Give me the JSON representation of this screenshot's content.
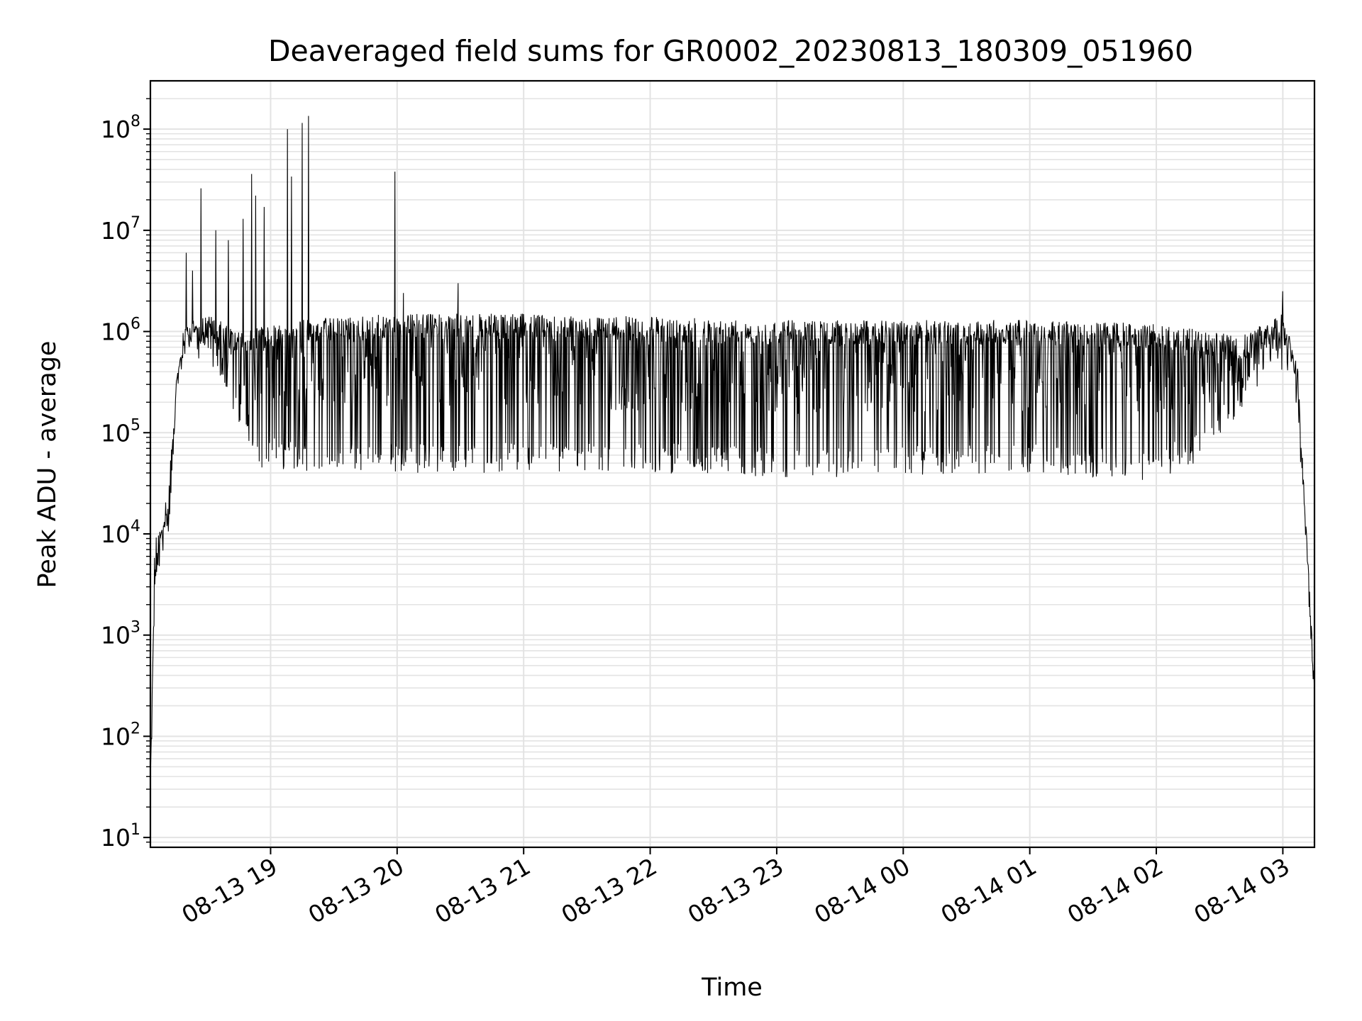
{
  "chart_data": {
    "type": "line",
    "title": "Deaveraged field sums for GR0002_20230813_180309_051960",
    "xlabel": "Time",
    "ylabel": "Peak ADU - average",
    "yscale": "log",
    "ylim": [
      8,
      300000000
    ],
    "xlim": [
      "2023-08-13 18:03",
      "2023-08-14 03:15"
    ],
    "grid": true,
    "line_color": "#000000",
    "grid_color": "#e3e3e3",
    "x_ticks": [
      {
        "t": "2023-08-13 19:00",
        "label": "08-13 19"
      },
      {
        "t": "2023-08-13 20:00",
        "label": "08-13 20"
      },
      {
        "t": "2023-08-13 21:00",
        "label": "08-13 21"
      },
      {
        "t": "2023-08-13 22:00",
        "label": "08-13 22"
      },
      {
        "t": "2023-08-13 23:00",
        "label": "08-13 23"
      },
      {
        "t": "2023-08-14 00:00",
        "label": "08-14 00"
      },
      {
        "t": "2023-08-14 01:00",
        "label": "08-14 01"
      },
      {
        "t": "2023-08-14 02:00",
        "label": "08-14 02"
      },
      {
        "t": "2023-08-14 03:00",
        "label": "08-14 03"
      }
    ],
    "y_ticks": [
      {
        "value": 10,
        "base": "10",
        "exp": "1"
      },
      {
        "value": 100,
        "base": "10",
        "exp": "2"
      },
      {
        "value": 1000,
        "base": "10",
        "exp": "3"
      },
      {
        "value": 10000,
        "base": "10",
        "exp": "4"
      },
      {
        "value": 100000,
        "base": "10",
        "exp": "5"
      },
      {
        "value": 1000000,
        "base": "10",
        "exp": "6"
      },
      {
        "value": 10000000,
        "base": "10",
        "exp": "7"
      },
      {
        "value": 100000000,
        "base": "10",
        "exp": "8"
      }
    ],
    "series": [
      {
        "envelope_upper": [
          [
            "2023-08-13 18:03",
            35
          ],
          [
            "2023-08-13 18:05",
            4000
          ],
          [
            "2023-08-13 18:08",
            10000
          ],
          [
            "2023-08-13 18:12",
            20000
          ],
          [
            "2023-08-13 18:15",
            300000
          ],
          [
            "2023-08-13 18:20",
            1200000
          ],
          [
            "2023-08-13 18:30",
            1500000
          ],
          [
            "2023-08-13 18:45",
            1000000
          ],
          [
            "2023-08-13 19:10",
            1300000
          ],
          [
            "2023-08-13 20:00",
            1500000
          ],
          [
            "2023-08-13 21:00",
            1500000
          ],
          [
            "2023-08-13 22:00",
            1400000
          ],
          [
            "2023-08-13 23:00",
            1300000
          ],
          [
            "2023-08-14 00:00",
            1300000
          ],
          [
            "2023-08-14 01:00",
            1300000
          ],
          [
            "2023-08-14 02:00",
            1200000
          ],
          [
            "2023-08-14 02:40",
            900000
          ],
          [
            "2023-08-14 03:00",
            1500000
          ],
          [
            "2023-08-14 03:07",
            500000
          ],
          [
            "2023-08-14 03:12",
            5000
          ],
          [
            "2023-08-14 03:15",
            300
          ]
        ],
        "envelope_lower": [
          [
            "2023-08-13 18:03",
            35
          ],
          [
            "2023-08-13 18:05",
            4000
          ],
          [
            "2023-08-13 18:08",
            10000
          ],
          [
            "2023-08-13 18:12",
            20000
          ],
          [
            "2023-08-13 18:15",
            300000
          ],
          [
            "2023-08-13 18:20",
            800000
          ],
          [
            "2023-08-13 18:30",
            400000
          ],
          [
            "2023-08-13 18:40",
            200000
          ],
          [
            "2023-08-13 18:55",
            45000
          ],
          [
            "2023-08-13 19:30",
            40000
          ],
          [
            "2023-08-13 20:30",
            40000
          ],
          [
            "2023-08-13 22:00",
            40000
          ],
          [
            "2023-08-13 23:30",
            35000
          ],
          [
            "2023-08-14 01:00",
            40000
          ],
          [
            "2023-08-14 01:55",
            32000
          ],
          [
            "2023-08-14 02:20",
            50000
          ],
          [
            "2023-08-14 02:40",
            150000
          ],
          [
            "2023-08-14 02:55",
            500000
          ],
          [
            "2023-08-14 03:05",
            300000
          ],
          [
            "2023-08-14 03:12",
            5000
          ],
          [
            "2023-08-14 03:15",
            300
          ]
        ],
        "spikes": [
          [
            "2023-08-13 18:20",
            6000000
          ],
          [
            "2023-08-13 18:23",
            4000000
          ],
          [
            "2023-08-13 18:27",
            26000000
          ],
          [
            "2023-08-13 18:34",
            10000000
          ],
          [
            "2023-08-13 18:40",
            8000000
          ],
          [
            "2023-08-13 18:47",
            13000000
          ],
          [
            "2023-08-13 18:51",
            36000000
          ],
          [
            "2023-08-13 18:53",
            22000000
          ],
          [
            "2023-08-13 18:57",
            17000000
          ],
          [
            "2023-08-13 19:08",
            100000000
          ],
          [
            "2023-08-13 19:10",
            34000000
          ],
          [
            "2023-08-13 19:15",
            115000000
          ],
          [
            "2023-08-13 19:18",
            135000000
          ],
          [
            "2023-08-13 19:59",
            38000000
          ],
          [
            "2023-08-13 20:03",
            2400000
          ],
          [
            "2023-08-13 20:29",
            3000000
          ],
          [
            "2023-08-14 03:00",
            2500000
          ]
        ]
      }
    ]
  }
}
